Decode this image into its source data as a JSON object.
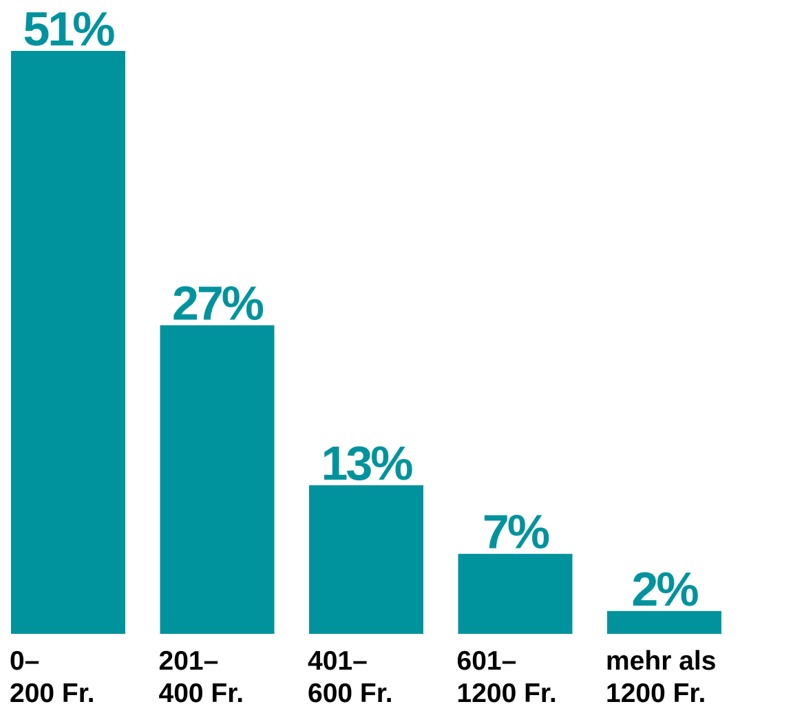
{
  "chart_data": {
    "type": "bar",
    "categories": [
      [
        "0–",
        "200 Fr."
      ],
      [
        "201–",
        "400 Fr."
      ],
      [
        "401–",
        "600 Fr."
      ],
      [
        "601–",
        "1200 Fr."
      ],
      [
        "mehr als",
        "1200 Fr."
      ]
    ],
    "values": [
      51,
      27,
      13,
      7,
      2
    ],
    "value_labels": [
      "51%",
      "27%",
      "13%",
      "7%",
      "2%"
    ],
    "ylim": [
      0,
      51
    ],
    "grid": false,
    "bar_color": "#00939e"
  }
}
